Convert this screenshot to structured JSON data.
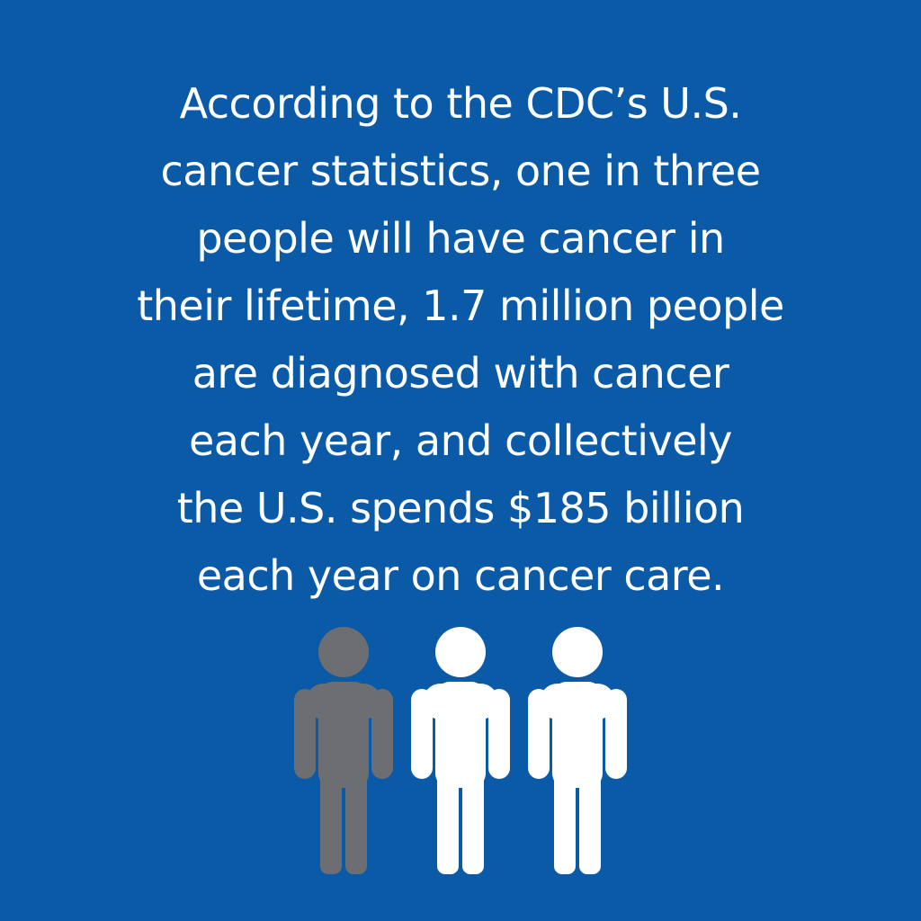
{
  "statement": {
    "lines": [
      "According to the CDC’s U.S.",
      "cancer statistics, one in three",
      "people will have cancer in",
      "their lifetime, 1.7 million people",
      "are diagnosed with cancer",
      "each year, and collectively",
      "the U.S. spends $185 billion",
      "each year on cancer care."
    ]
  },
  "figures": {
    "icon": "person-icon",
    "total": 3,
    "highlighted": 1
  },
  "colors": {
    "background": "#0a5aa8",
    "text": "#ffffff",
    "highlighted_figure": "#6d6e71",
    "other_figures": "#ffffff"
  }
}
